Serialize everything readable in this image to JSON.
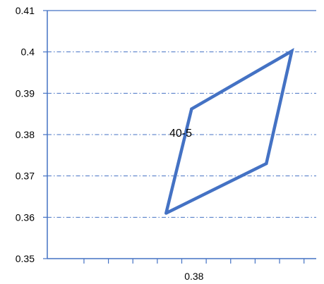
{
  "chart_data": {
    "type": "line",
    "title": "",
    "xlabel": "",
    "ylabel": "",
    "annotation": "40-5",
    "ylim": [
      0.35,
      0.41
    ],
    "xlim": [
      0.35,
      0.405
    ],
    "x_tick_labels": [
      {
        "value": 0.38,
        "label": "0.38"
      }
    ],
    "y_tick_labels": [
      "0.35",
      "0.36",
      "0.37",
      "0.38",
      "0.39",
      "0.4",
      "0.41"
    ],
    "y_ticks": [
      0.35,
      0.36,
      0.37,
      0.38,
      0.39,
      0.4,
      0.41
    ],
    "x_minor_ticks": [
      0.3575,
      0.3625,
      0.3675,
      0.3725,
      0.3775,
      0.3825,
      0.3875,
      0.3925,
      0.3975,
      0.4025
    ],
    "grid": true,
    "series": [
      {
        "color": "#4472C4",
        "x": [
          0.3743,
          0.3795,
          0.4,
          0.3948,
          0.3743
        ],
        "y": [
          0.361,
          0.3862,
          0.4002,
          0.373,
          0.361
        ]
      }
    ]
  }
}
